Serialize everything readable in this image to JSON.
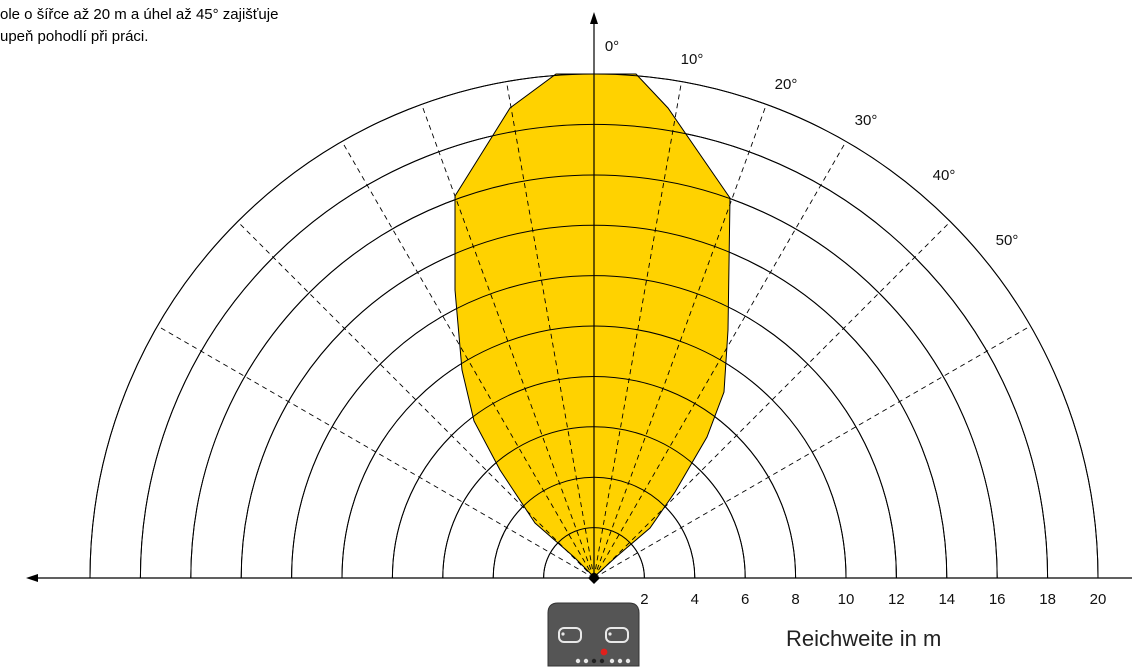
{
  "caption": {
    "line1": "ole o šířce až 20 m a úhel až 45° zajišťuje",
    "line2": "upeň pohodlí při práci."
  },
  "diagram": {
    "axis_title": "Reichweite in m",
    "range_ticks": [
      "2",
      "4",
      "6",
      "8",
      "10",
      "12",
      "14",
      "16",
      "18",
      "20"
    ],
    "angle_labels": [
      "0°",
      "10°",
      "20°",
      "30°",
      "40°",
      "50°"
    ],
    "max_range_m": 20,
    "dashed_ray_angles_deg": [
      -60,
      -45,
      -30,
      -20,
      -10,
      10,
      20,
      30,
      45,
      60
    ],
    "colors": {
      "coverage_fill": "#FFD200",
      "lines": "#000000",
      "sensor_body": "#555555",
      "sensor_led": "#E0201C"
    }
  }
}
